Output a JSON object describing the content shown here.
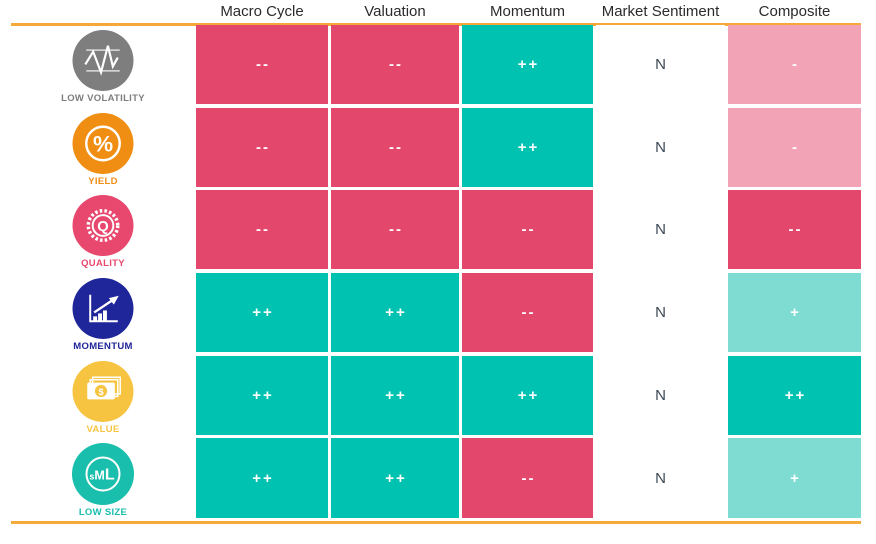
{
  "colors": {
    "accent_line": "#F5A93B",
    "header_text": "#2B2B2B",
    "neutral_text": "#3A4754",
    "page_background": "#FFFFFF"
  },
  "rating_styles": {
    "--": {
      "bg": "#E4476C",
      "fg": "#FFFFFF"
    },
    "-": {
      "bg": "#F2A4B6",
      "fg": "#FFFFFF"
    },
    "+": {
      "bg": "#7EDCD3",
      "fg": "#FFFFFF"
    },
    "++": {
      "bg": "#00C2B1",
      "fg": "#FFFFFF"
    },
    "N": {
      "bg": "#FFFFFF",
      "fg": "#3A4754"
    }
  },
  "chart_data": {
    "type": "heatmap",
    "columns": [
      "Macro Cycle",
      "Valuation",
      "Momentum",
      "Market Sentiment",
      "Composite"
    ],
    "rows": [
      {
        "factor": "LOW VOLATILITY",
        "icon": "volatility-icon",
        "color": "#7E7E7E",
        "ratings": [
          "--",
          "--",
          "++",
          "N",
          "-"
        ]
      },
      {
        "factor": "YIELD",
        "icon": "percent-icon",
        "color": "#EF8E12",
        "ratings": [
          "--",
          "--",
          "++",
          "N",
          "-"
        ]
      },
      {
        "factor": "QUALITY",
        "icon": "quality-badge-icon",
        "color": "#E8486D",
        "ratings": [
          "--",
          "--",
          "--",
          "N",
          "--"
        ]
      },
      {
        "factor": "MOMENTUM",
        "icon": "momentum-chart-icon",
        "color": "#1F2699",
        "ratings": [
          "++",
          "++",
          "--",
          "N",
          "+"
        ]
      },
      {
        "factor": "VALUE",
        "icon": "banknote-icon",
        "color": "#F6C441",
        "ratings": [
          "++",
          "++",
          "++",
          "N",
          "++"
        ]
      },
      {
        "factor": "LOW SIZE",
        "icon": "size-sml-icon",
        "color": "#19BEAC",
        "ratings": [
          "++",
          "++",
          "--",
          "N",
          "+"
        ]
      }
    ]
  }
}
